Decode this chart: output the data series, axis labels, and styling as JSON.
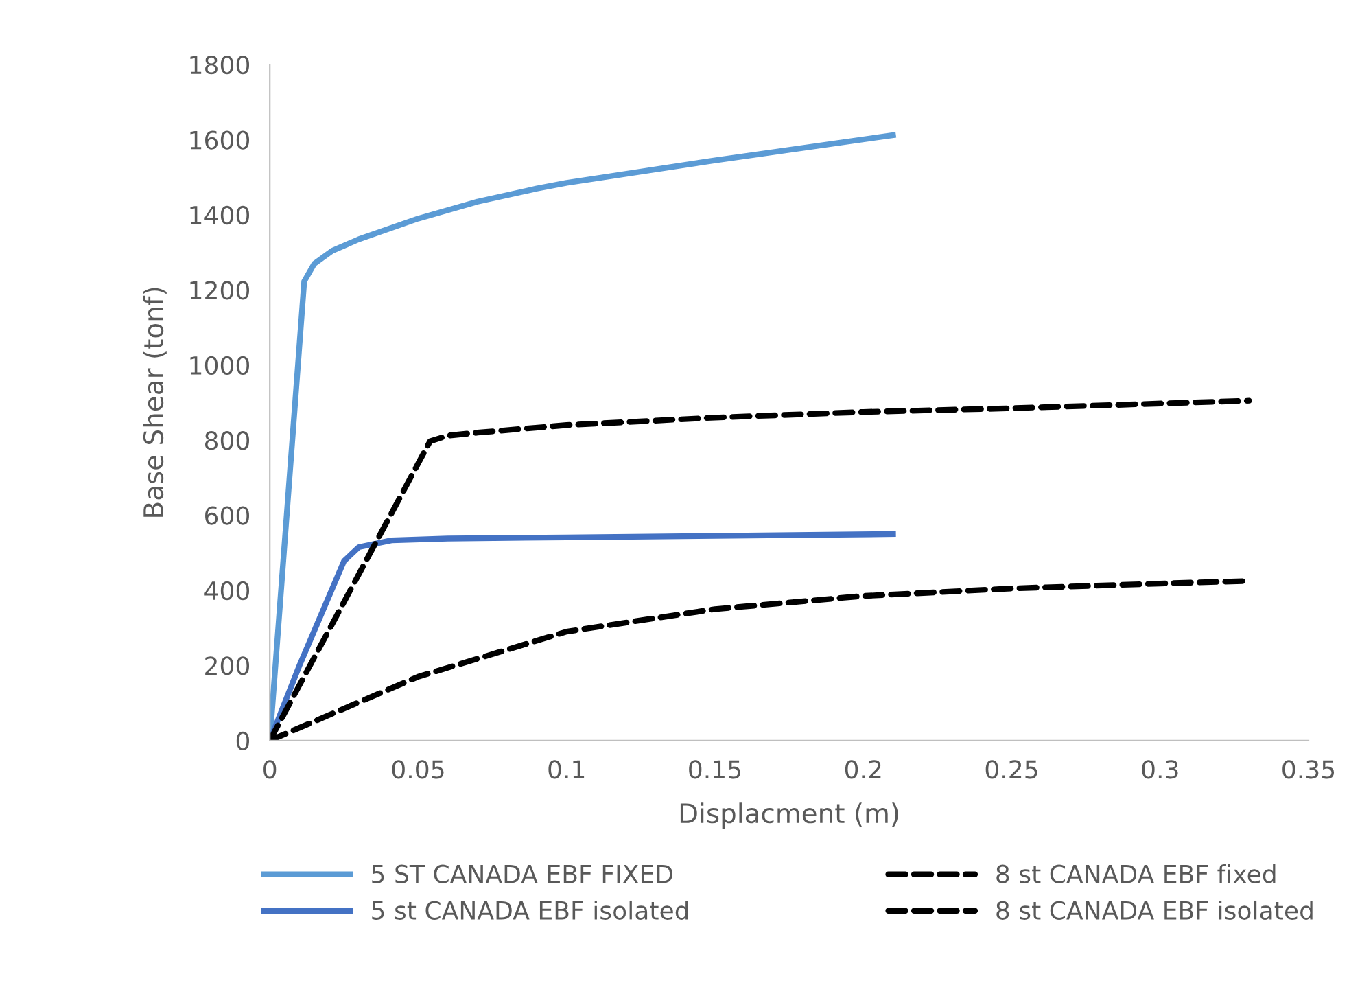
{
  "chart_data": {
    "type": "line",
    "xlabel": "Displacment (m)",
    "ylabel": "Base Shear (tonf)",
    "xlim": [
      0,
      0.35
    ],
    "xticks": [
      0,
      0.05,
      0.1,
      0.15,
      0.2,
      0.25,
      0.3,
      0.35
    ],
    "ylim": [
      0,
      1800
    ],
    "yticks": [
      0,
      200,
      400,
      600,
      800,
      1000,
      1200,
      1400,
      1600,
      1800
    ],
    "grid": false,
    "legend": "bottom",
    "marker": "none",
    "series": [
      {
        "name": "5 ST CANADA EBF FIXED",
        "color": "#5b9bd5",
        "line_style": "solid",
        "x": [
          0,
          0.0116,
          0.015,
          0.021,
          0.03,
          0.05,
          0.07,
          0.09,
          0.1,
          0.15,
          0.21
        ],
        "values": [
          0,
          1223,
          1270,
          1304,
          1335,
          1390,
          1435,
          1470,
          1485,
          1545,
          1612
        ]
      },
      {
        "name": "5 st CANADA EBF isolated",
        "color": "#4472c4",
        "line_style": "solid",
        "x": [
          0,
          0.01,
          0.025,
          0.03,
          0.041,
          0.06,
          0.1,
          0.15,
          0.21
        ],
        "values": [
          0,
          200,
          478,
          515,
          533,
          538,
          541,
          545,
          550
        ]
      },
      {
        "name": "8 st CANADA EBF fixed",
        "color": "#000000",
        "line_style": "dashed",
        "x": [
          0,
          0.054,
          0.06,
          0.07,
          0.1,
          0.15,
          0.2,
          0.25,
          0.33
        ],
        "values": [
          0,
          797,
          812,
          820,
          840,
          860,
          875,
          885,
          905
        ]
      },
      {
        "name": "8 st CANADA EBF isolated",
        "color": "#000000",
        "line_style": "dashed",
        "x": [
          0,
          0.05,
          0.1,
          0.15,
          0.2,
          0.25,
          0.3,
          0.33
        ],
        "values": [
          0,
          170,
          290,
          350,
          385,
          405,
          418,
          425
        ]
      }
    ]
  }
}
